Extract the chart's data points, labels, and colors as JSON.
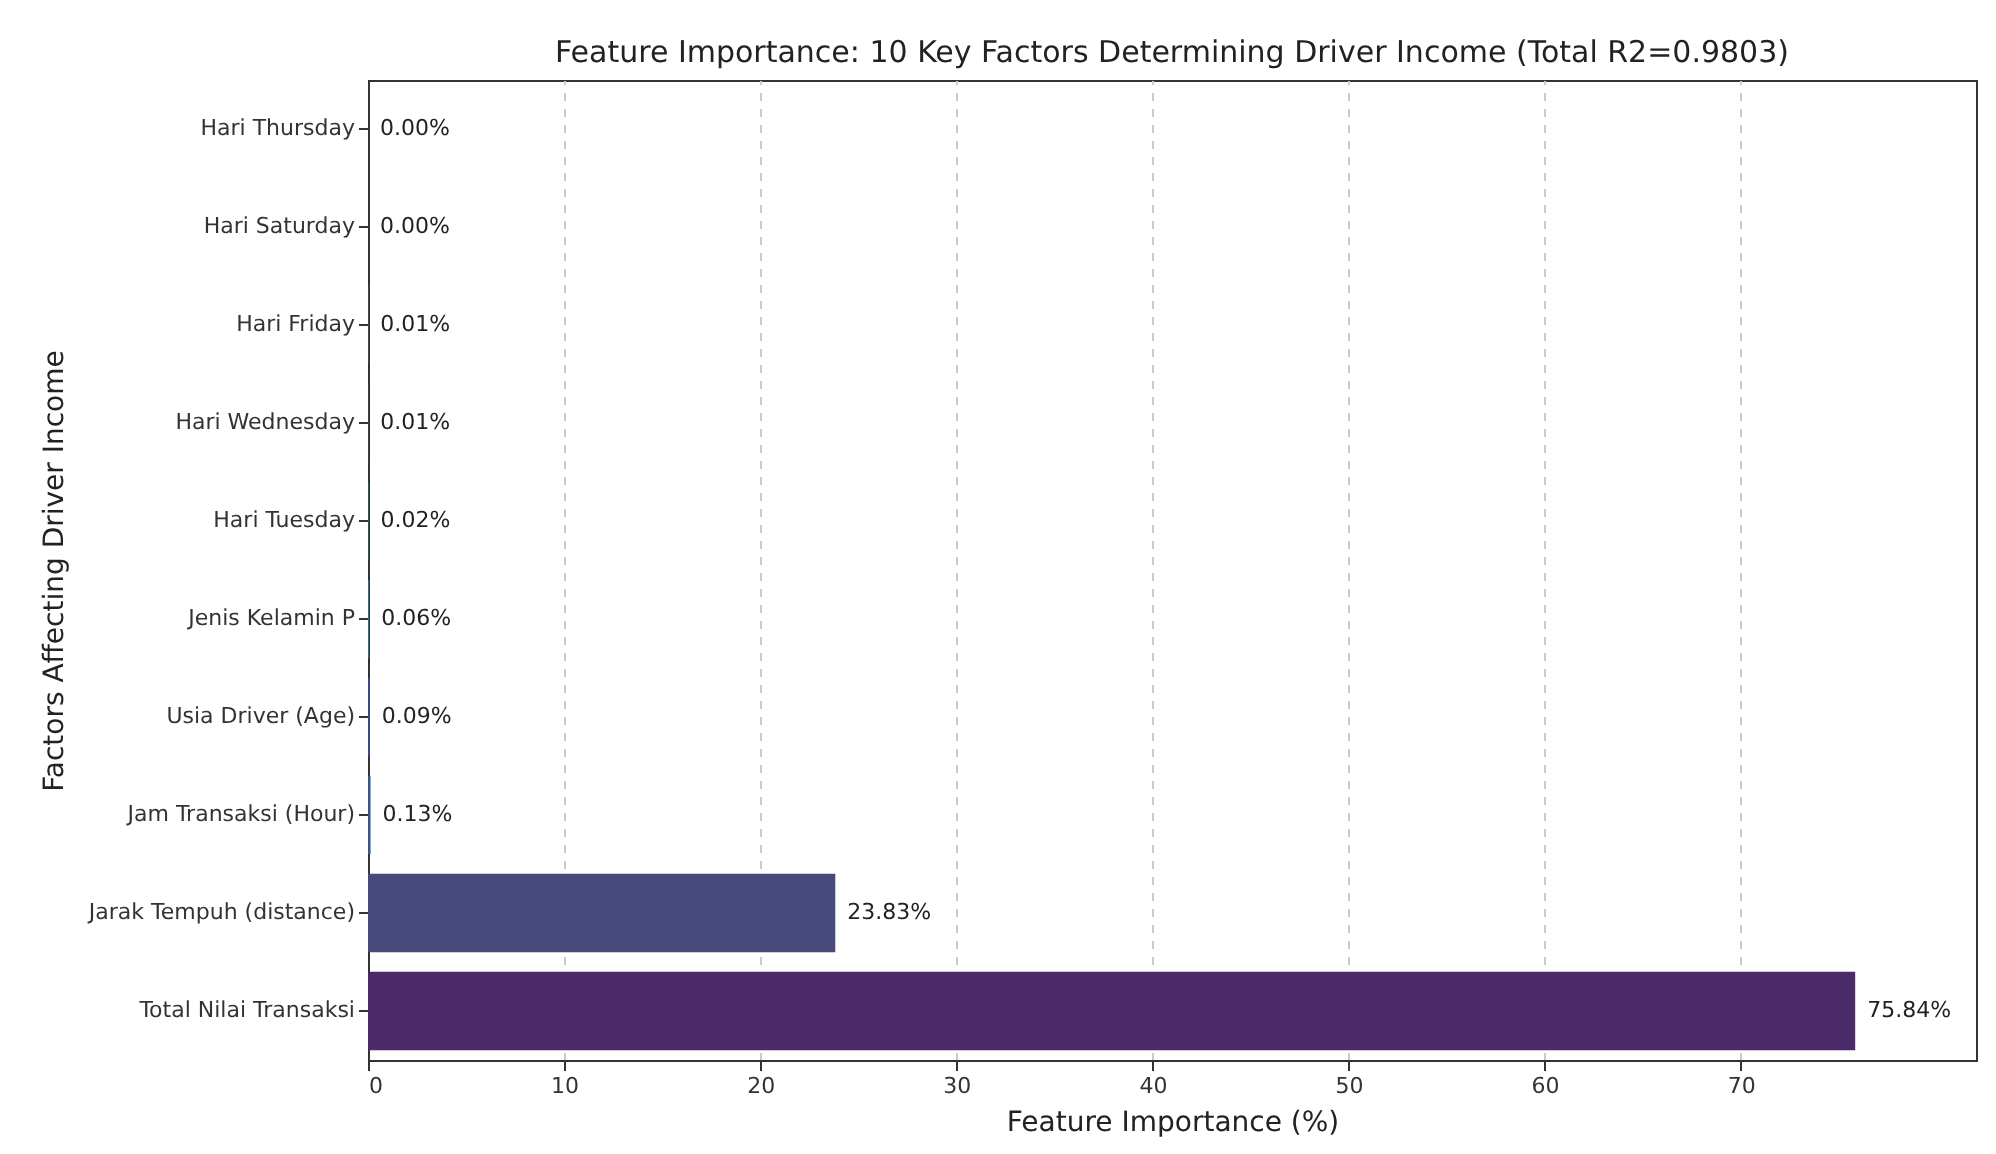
{
  "chart_data": {
    "type": "bar",
    "orientation": "horizontal",
    "title": "Feature Importance: 10 Key Factors Determining Driver Income  (Total R2=0.9803)",
    "xlabel": "Feature Importance (%)",
    "ylabel": "Factors Affecting Driver Income",
    "categories": [
      "Hari Thursday",
      "Hari Saturday",
      "Hari Friday",
      "Hari Wednesday",
      "Hari Tuesday",
      "Jenis Kelamin P",
      "Usia Driver (Age)",
      "Jam Transaksi (Hour)",
      "Jarak Tempuh (distance)",
      "Total Nilai Transaksi"
    ],
    "values": [
      0.0,
      0.0,
      0.01,
      0.01,
      0.02,
      0.06,
      0.09,
      0.13,
      23.83,
      75.84
    ],
    "value_labels": [
      "0.00%",
      "0.00%",
      "0.01%",
      "0.01%",
      "0.02%",
      "0.06%",
      "0.09%",
      "0.13%",
      "23.83%",
      "75.84%"
    ],
    "colors": [
      "#b5de2b",
      "#6ece58",
      "#35b779",
      "#1f9e89",
      "#26828e",
      "#31688e",
      "#3e4989",
      "#39568c",
      "#484a7c",
      "#4b2a6a"
    ],
    "xlim": [
      0,
      82
    ],
    "xticks": [
      0,
      10,
      20,
      30,
      40,
      50,
      60,
      70
    ],
    "grid": "x"
  }
}
